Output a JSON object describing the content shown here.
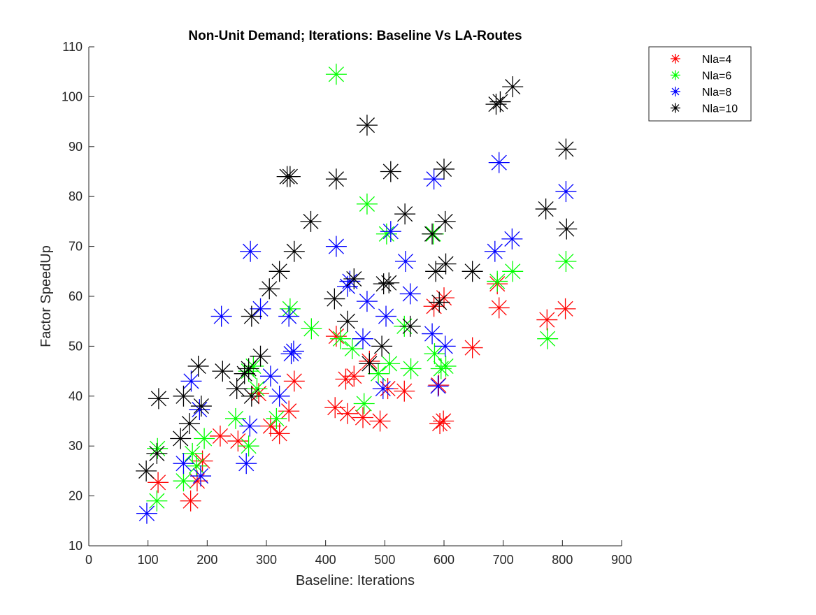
{
  "chart_data": {
    "type": "scatter",
    "title": "Non-Unit Demand; Iterations: Baseline Vs LA-Routes",
    "xlabel": "Baseline:  Iterations",
    "ylabel": "Factor SpeedUp",
    "xlim": [
      0,
      900
    ],
    "ylim": [
      10,
      110
    ],
    "xticks": [
      "0",
      "100",
      "200",
      "300",
      "400",
      "500",
      "600",
      "700",
      "800",
      "900"
    ],
    "yticks": [
      "10",
      "20",
      "30",
      "40",
      "50",
      "60",
      "70",
      "80",
      "90",
      "100",
      "110"
    ],
    "marker": "asterisk",
    "grid": false,
    "legend_position": "outside-top-right",
    "series": [
      {
        "name": "Nla=4",
        "color": "#ff0000",
        "points": [
          [
            117,
            22.7
          ],
          [
            172,
            19
          ],
          [
            183,
            23
          ],
          [
            192,
            27
          ],
          [
            222,
            32
          ],
          [
            252,
            31
          ],
          [
            287,
            40.5
          ],
          [
            307,
            34
          ],
          [
            322,
            32.5
          ],
          [
            338,
            37
          ],
          [
            347,
            43
          ],
          [
            416,
            37.7
          ],
          [
            418,
            52
          ],
          [
            437,
            36.5
          ],
          [
            448,
            44
          ],
          [
            463,
            35.7
          ],
          [
            474,
            47
          ],
          [
            492,
            35
          ],
          [
            505,
            41.5
          ],
          [
            533,
            41
          ],
          [
            583,
            58
          ],
          [
            591,
            42.2
          ],
          [
            593,
            34.5
          ],
          [
            599,
            35
          ],
          [
            600,
            59.7
          ],
          [
            648,
            49.7
          ],
          [
            690,
            62.5
          ],
          [
            693,
            57.7
          ],
          [
            774,
            55.3
          ],
          [
            805,
            57.5
          ],
          [
            434,
            43.4
          ]
        ]
      },
      {
        "name": "Nla=6",
        "color": "#00ff00",
        "points": [
          [
            115,
            19
          ],
          [
            116,
            29.5
          ],
          [
            160,
            23
          ],
          [
            175,
            28.5
          ],
          [
            182,
            26
          ],
          [
            195,
            31.5
          ],
          [
            248,
            35.5
          ],
          [
            270,
            30
          ],
          [
            278,
            46
          ],
          [
            284,
            41.5
          ],
          [
            317,
            35.5
          ],
          [
            340,
            57.5
          ],
          [
            376,
            53.5
          ],
          [
            418,
            104.5
          ],
          [
            425,
            51.5
          ],
          [
            445,
            49.5
          ],
          [
            465,
            38.5
          ],
          [
            470,
            78.5
          ],
          [
            489,
            44.5
          ],
          [
            503,
            72.5
          ],
          [
            508,
            46.5
          ],
          [
            533,
            54
          ],
          [
            544,
            45.5
          ],
          [
            582,
            72.5
          ],
          [
            584,
            48.5
          ],
          [
            595,
            45.5
          ],
          [
            603,
            46
          ],
          [
            690,
            63
          ],
          [
            716,
            65
          ],
          [
            775,
            51.5
          ],
          [
            806,
            67
          ],
          [
            270,
            45
          ]
        ]
      },
      {
        "name": "Nla=8",
        "color": "#0000ff",
        "points": [
          [
            98,
            16.5
          ],
          [
            160,
            26.5
          ],
          [
            173,
            43
          ],
          [
            187,
            37.3
          ],
          [
            189,
            24
          ],
          [
            224,
            56
          ],
          [
            266,
            26.5
          ],
          [
            272,
            34
          ],
          [
            273,
            69
          ],
          [
            290,
            57.5
          ],
          [
            307,
            44
          ],
          [
            322,
            40
          ],
          [
            338,
            56
          ],
          [
            342,
            48.5
          ],
          [
            346,
            49
          ],
          [
            418,
            70
          ],
          [
            437,
            62
          ],
          [
            441,
            63
          ],
          [
            463,
            51.5
          ],
          [
            470,
            59
          ],
          [
            497,
            41.5
          ],
          [
            502,
            56
          ],
          [
            510,
            73
          ],
          [
            535,
            67
          ],
          [
            543,
            60.5
          ],
          [
            580,
            52.5
          ],
          [
            583,
            83.5
          ],
          [
            590,
            42
          ],
          [
            602,
            50
          ],
          [
            686,
            69
          ],
          [
            693,
            86.8
          ],
          [
            715,
            71.5
          ],
          [
            806,
            81
          ]
        ]
      },
      {
        "name": "Nla=10",
        "color": "#000000",
        "points": [
          [
            97,
            25
          ],
          [
            115,
            28.5
          ],
          [
            118,
            39.5
          ],
          [
            155,
            31.5
          ],
          [
            160,
            40
          ],
          [
            170,
            34.5
          ],
          [
            185,
            46
          ],
          [
            190,
            38
          ],
          [
            226,
            45
          ],
          [
            250,
            41.5
          ],
          [
            263,
            44.5
          ],
          [
            270,
            45.5
          ],
          [
            275,
            56
          ],
          [
            275,
            40
          ],
          [
            290,
            48
          ],
          [
            305,
            61.5
          ],
          [
            322,
            65
          ],
          [
            335,
            84
          ],
          [
            340,
            84
          ],
          [
            347,
            69
          ],
          [
            375,
            75
          ],
          [
            415,
            59.5
          ],
          [
            418,
            83.5
          ],
          [
            437,
            55
          ],
          [
            448,
            63.5
          ],
          [
            470,
            94.3
          ],
          [
            474,
            46.5
          ],
          [
            495,
            50
          ],
          [
            498,
            62.5
          ],
          [
            510,
            85
          ],
          [
            534,
            76.5
          ],
          [
            543,
            54
          ],
          [
            580,
            72.5
          ],
          [
            586,
            65
          ],
          [
            592,
            58.8
          ],
          [
            600,
            85.5
          ],
          [
            602,
            75
          ],
          [
            603,
            66.5
          ],
          [
            648,
            65
          ],
          [
            688,
            98.5
          ],
          [
            695,
            99
          ],
          [
            716,
            102
          ],
          [
            772,
            77.5
          ],
          [
            806,
            89.5
          ],
          [
            807,
            73.5
          ],
          [
            507,
            62.7
          ]
        ]
      }
    ]
  }
}
